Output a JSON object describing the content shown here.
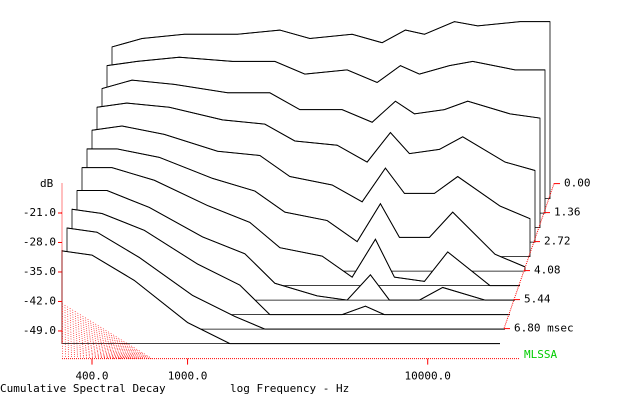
{
  "chart_data": {
    "type": "waterfall",
    "title": "Cumulative Spectral Decay",
    "x_label": "log Frequency - Hz",
    "y_label": "dB",
    "brand": "MLSSA",
    "line_color": "#000000",
    "axis_color": "#ff0000",
    "brand_color": "#00cc00",
    "log_x": true,
    "x": [
      300,
      400,
      600,
      1000,
      1500,
      2000,
      3000,
      4000,
      5000,
      6000,
      8000,
      10000,
      15000,
      20000
    ],
    "xlim": [
      300,
      20000
    ],
    "xticks": [
      {
        "value": 400,
        "label": "400.0"
      },
      {
        "value": 1000,
        "label": "1000.0"
      },
      {
        "value": 10000,
        "label": "10000.0"
      }
    ],
    "ylim": [
      -52,
      -14
    ],
    "yticks": [
      {
        "value": -21,
        "label": "-21.0"
      },
      {
        "value": -28,
        "label": "-28.0"
      },
      {
        "value": -35,
        "label": "-35.0"
      },
      {
        "value": -42,
        "label": "-42.0"
      },
      {
        "value": -49,
        "label": "-49.0"
      }
    ],
    "tlim": [
      0,
      6.8
    ],
    "tticks": [
      {
        "value": 0,
        "label": "0.00"
      },
      {
        "value": 1.36,
        "label": "1.36"
      },
      {
        "value": 2.72,
        "label": "2.72"
      },
      {
        "value": 4.08,
        "label": "4.08"
      },
      {
        "value": 5.44,
        "label": "5.44"
      },
      {
        "value": 6.8,
        "label": "6.80 msec"
      }
    ],
    "times": [
      0,
      0.68,
      1.36,
      2.04,
      2.72,
      3.4,
      4.08,
      4.76,
      5.44,
      6.12,
      6.8
    ],
    "values": [
      [
        -16,
        -14,
        -13,
        -13,
        -12,
        -14,
        -13,
        -15,
        -12,
        -13,
        -10,
        -11,
        -10,
        -10
      ],
      [
        -17,
        -16,
        -15,
        -16,
        -16,
        -19,
        -18,
        -21,
        -17,
        -19,
        -17,
        -16,
        -18,
        -18
      ],
      [
        -19,
        -17,
        -18,
        -20,
        -20,
        -24,
        -24,
        -27,
        -22,
        -25,
        -24,
        -22,
        -25,
        -26
      ],
      [
        -20,
        -19,
        -20,
        -23,
        -24,
        -28,
        -29,
        -33,
        -26,
        -31,
        -30,
        -27,
        -33,
        -35
      ],
      [
        -22,
        -21,
        -23,
        -27,
        -28,
        -33,
        -35,
        -39,
        -31,
        -37,
        -37,
        -33,
        -40,
        -43
      ],
      [
        -23,
        -23,
        -25,
        -30,
        -33,
        -38,
        -40,
        -45,
        -36,
        -44,
        -44,
        -38,
        -48,
        -51
      ],
      [
        -24,
        -24,
        -27,
        -33,
        -37,
        -43,
        -45,
        -50,
        -41,
        -50,
        -51,
        -44,
        -52,
        -52
      ],
      [
        -26,
        -26,
        -30,
        -37,
        -41,
        -48,
        -51,
        -52,
        -46,
        -52,
        -52,
        -49,
        -52,
        -52
      ],
      [
        -27,
        -28,
        -32,
        -40,
        -45,
        -52,
        -52,
        -52,
        -50,
        -52,
        -52,
        -52,
        -52,
        -52
      ],
      [
        -28,
        -29,
        -35,
        -44,
        -49,
        -52,
        -52,
        -52,
        -52,
        -52,
        -52,
        -52,
        -52,
        -52
      ],
      [
        -30,
        -31,
        -37,
        -47,
        -52,
        -52,
        -52,
        -52,
        -52,
        -52,
        -52,
        -52,
        -52,
        -52
      ]
    ]
  }
}
